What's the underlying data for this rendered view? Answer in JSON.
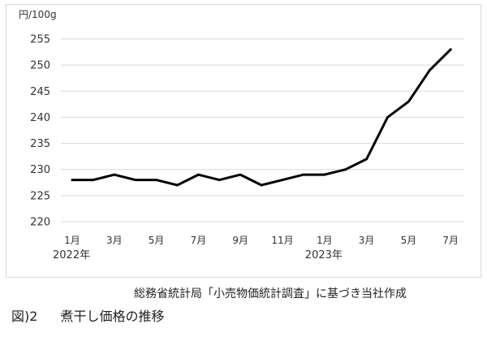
{
  "chart_data": {
    "type": "line",
    "ylabel": "円/100g",
    "ylim": [
      220,
      255
    ],
    "yticks": [
      220,
      225,
      230,
      235,
      240,
      245,
      250,
      255
    ],
    "x": [
      "2022-01",
      "2022-02",
      "2022-03",
      "2022-04",
      "2022-05",
      "2022-06",
      "2022-07",
      "2022-08",
      "2022-09",
      "2022-10",
      "2022-11",
      "2022-12",
      "2023-01",
      "2023-02",
      "2023-03",
      "2023-04",
      "2023-05",
      "2023-06",
      "2023-07"
    ],
    "xtick_labels": [
      "1月",
      "",
      "3月",
      "",
      "5月",
      "",
      "7月",
      "",
      "9月",
      "",
      "11月",
      "",
      "1月",
      "",
      "3月",
      "",
      "5月",
      "",
      "7月"
    ],
    "year_labels": [
      {
        "index": 0,
        "label": "2022年"
      },
      {
        "index": 12,
        "label": "2023年"
      }
    ],
    "series": [
      {
        "values": [
          228,
          228,
          229,
          228,
          228,
          227,
          229,
          228,
          229,
          227,
          228,
          229,
          229,
          230,
          232,
          240,
          243,
          249,
          253
        ],
        "color": "#000000"
      }
    ],
    "grid": true,
    "grid_color": "#d9d9d9"
  },
  "source_note": "総務省統計局「小売物価統計調査」に基づき当社作成",
  "caption": {
    "number": "図)2",
    "title": "煮干し価格の推移"
  }
}
